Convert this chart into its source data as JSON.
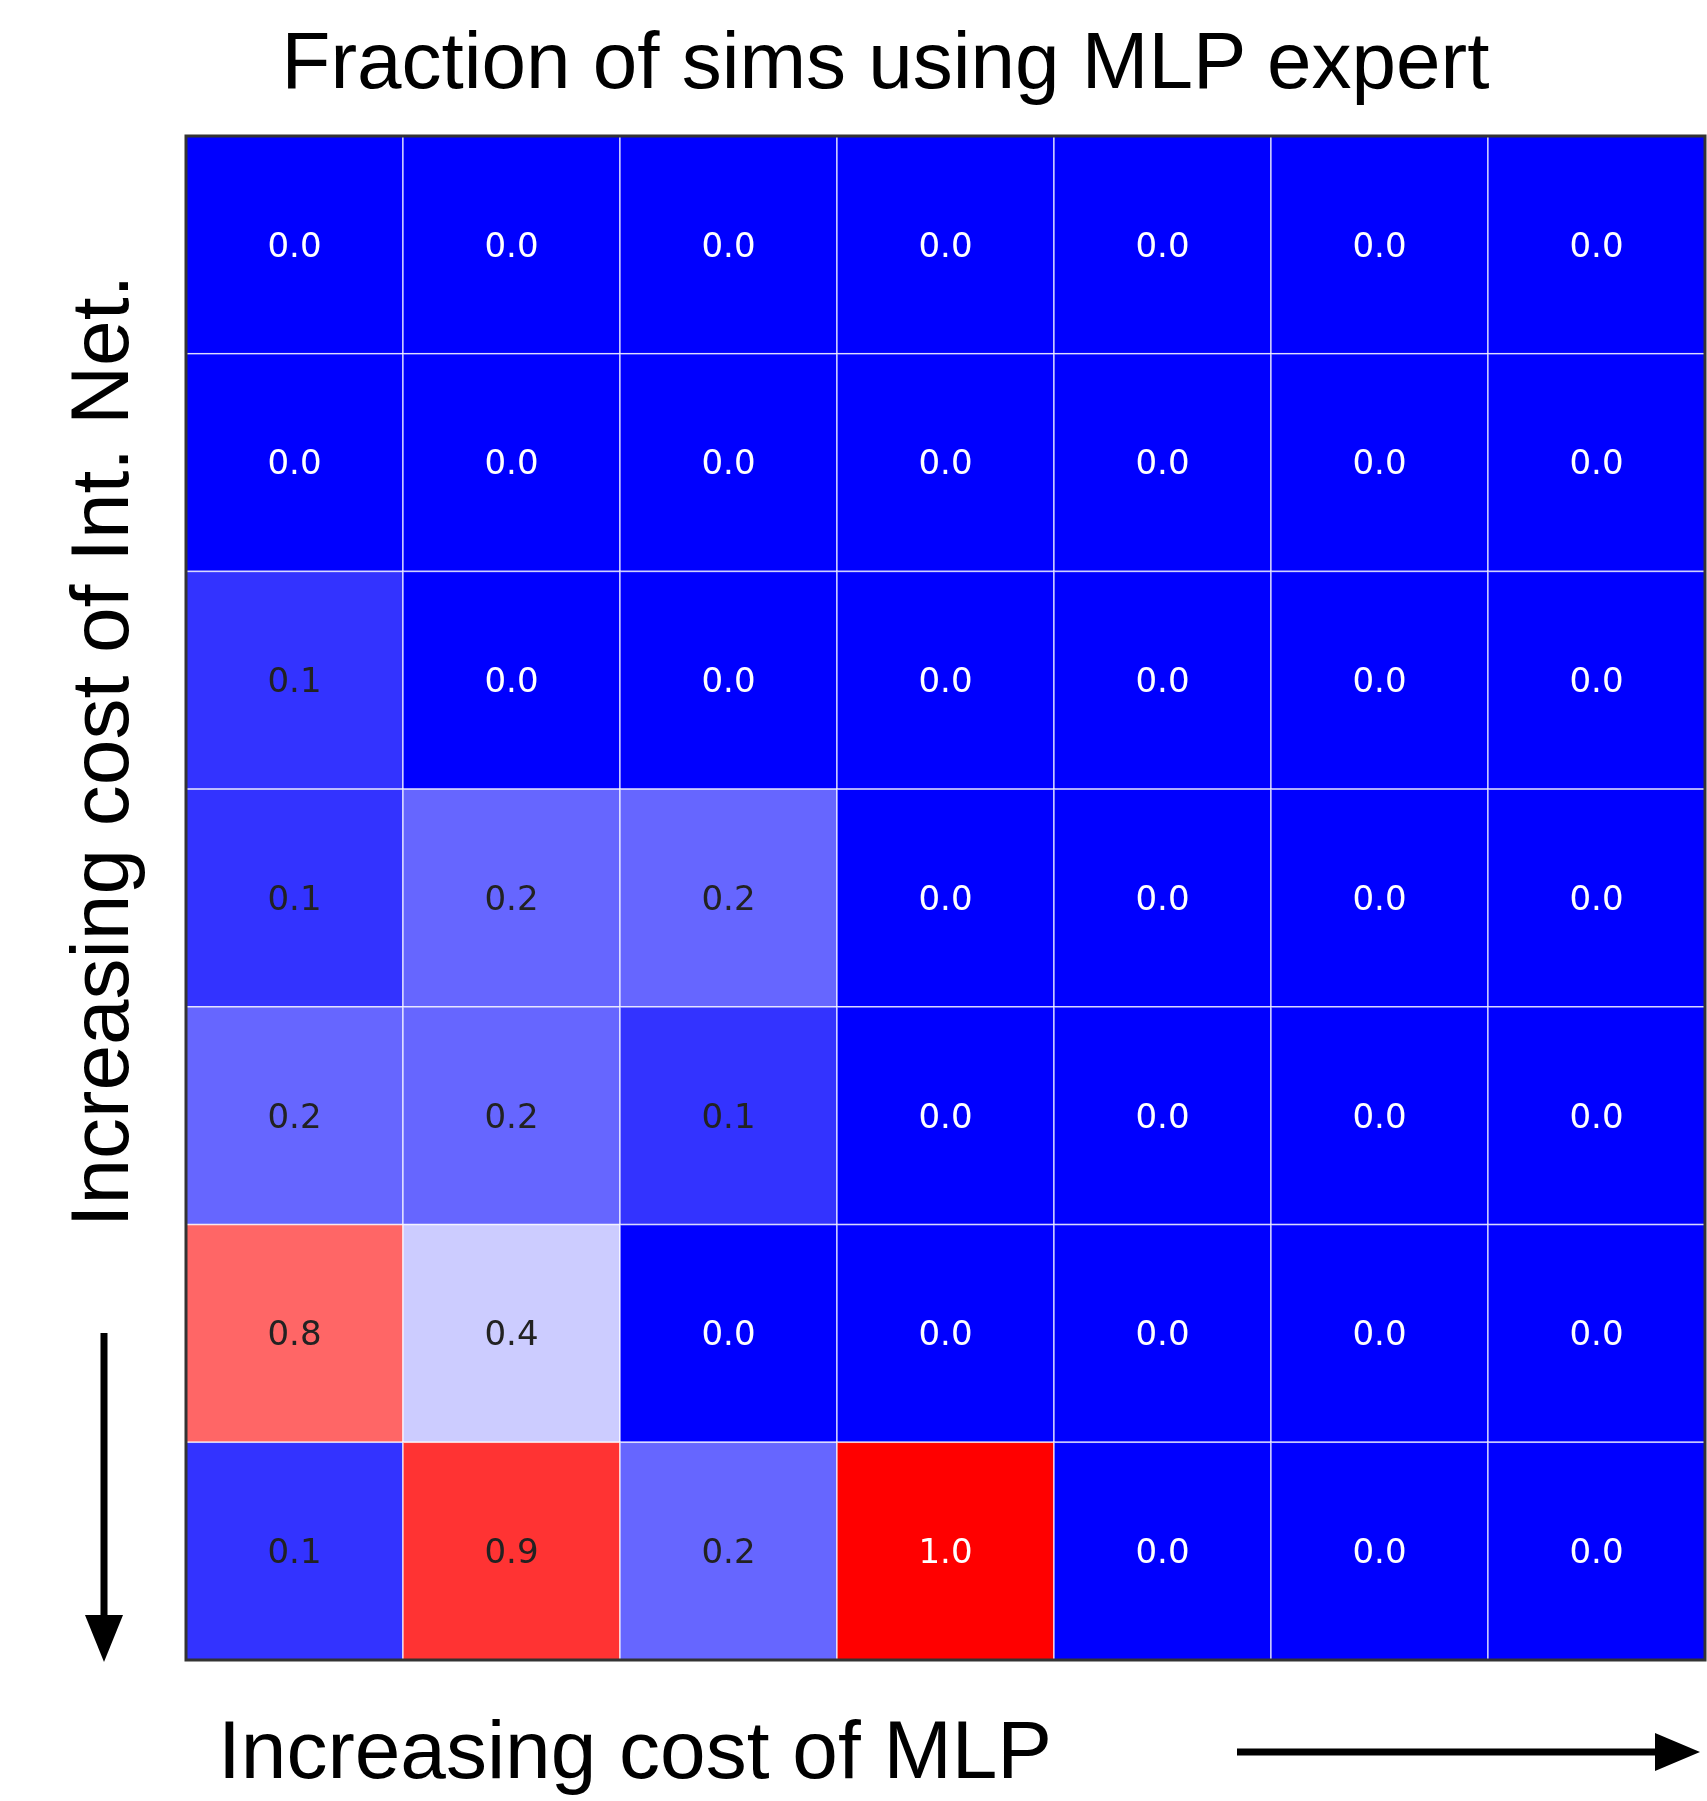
{
  "chart_data": {
    "type": "heatmap",
    "title": "Fraction of sims using MLP expert",
    "xlabel": "Increasing cost of MLP",
    "ylabel": "Increasing cost of Int. Net.",
    "categories": [
      null,
      null,
      null,
      null,
      null,
      null,
      null
    ],
    "y_categories": [
      null,
      null,
      null,
      null,
      null,
      null,
      null
    ],
    "cells": [
      [
        0.0,
        0.0,
        0.0,
        0.0,
        0.0,
        0.0,
        0.0
      ],
      [
        0.0,
        0.0,
        0.0,
        0.0,
        0.0,
        0.0,
        0.0
      ],
      [
        0.1,
        0.0,
        0.0,
        0.0,
        0.0,
        0.0,
        0.0
      ],
      [
        0.1,
        0.2,
        0.2,
        0.0,
        0.0,
        0.0,
        0.0
      ],
      [
        0.2,
        0.2,
        0.1,
        0.0,
        0.0,
        0.0,
        0.0
      ],
      [
        0.8,
        0.4,
        0.0,
        0.0,
        0.0,
        0.0,
        0.0
      ],
      [
        0.1,
        0.9,
        0.2,
        1.0,
        0.0,
        0.0,
        0.0
      ]
    ],
    "cell_labels": [
      [
        "0.0",
        "0.0",
        "0.0",
        "0.0",
        "0.0",
        "0.0",
        "0.0"
      ],
      [
        "0.0",
        "0.0",
        "0.0",
        "0.0",
        "0.0",
        "0.0",
        "0.0"
      ],
      [
        "0.1",
        "0.0",
        "0.0",
        "0.0",
        "0.0",
        "0.0",
        "0.0"
      ],
      [
        "0.1",
        "0.2",
        "0.2",
        "0.0",
        "0.0",
        "0.0",
        "0.0"
      ],
      [
        "0.2",
        "0.2",
        "0.1",
        "0.0",
        "0.0",
        "0.0",
        "0.0"
      ],
      [
        "0.8",
        "0.4",
        "0.0",
        "0.0",
        "0.0",
        "0.0",
        "0.0"
      ],
      [
        "0.1",
        "0.9",
        "0.2",
        "1.0",
        "0.0",
        "0.0",
        "0.0"
      ]
    ]
  }
}
